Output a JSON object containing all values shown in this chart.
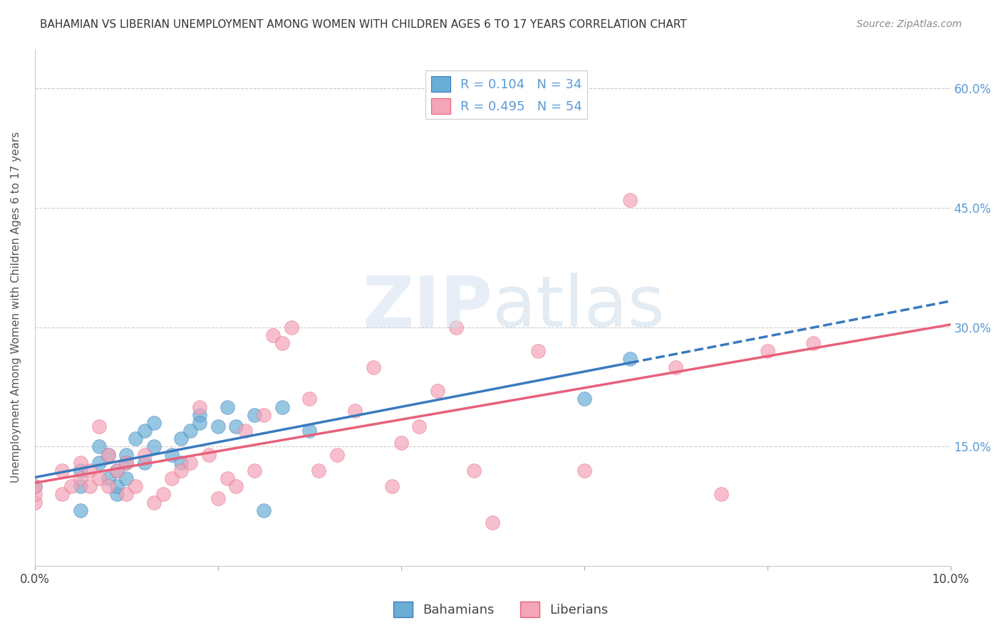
{
  "title": "BAHAMIAN VS LIBERIAN UNEMPLOYMENT AMONG WOMEN WITH CHILDREN AGES 6 TO 17 YEARS CORRELATION CHART",
  "source": "Source: ZipAtlas.com",
  "xlabel_bottom": "",
  "ylabel": "Unemployment Among Women with Children Ages 6 to 17 years",
  "xlim": [
    0.0,
    0.1
  ],
  "ylim": [
    0.0,
    0.65
  ],
  "xticks": [
    0.0,
    0.02,
    0.04,
    0.06,
    0.08,
    0.1
  ],
  "xticklabels": [
    "0.0%",
    "",
    "",
    "",
    "",
    "10.0%"
  ],
  "yticks_left": [
    0.0,
    0.15,
    0.3,
    0.45,
    0.6
  ],
  "yticklabels_left": [
    "",
    "15.0%",
    "30.0%",
    "45.0%",
    "60.0%"
  ],
  "yticks_right": [
    0.0,
    0.15,
    0.3,
    0.45,
    0.6
  ],
  "yticklabels_right": [
    "",
    "15.0%",
    "30.0%",
    "45.0%",
    "60.0%"
  ],
  "legend_r1": "R = 0.104",
  "legend_n1": "N = 34",
  "legend_r2": "R = 0.495",
  "legend_n2": "N = 54",
  "color_blue": "#6aaed6",
  "color_pink": "#f4a5b8",
  "color_blue_line": "#3a7abf",
  "color_pink_line": "#e8607a",
  "color_title": "#333333",
  "color_axis_label": "#555555",
  "color_right_tick": "#5b9bd5",
  "watermark_text": "ZIPatlas",
  "watermark_color": "#d0dff0",
  "bahamian_x": [
    0.0,
    0.005,
    0.005,
    0.005,
    0.007,
    0.007,
    0.008,
    0.008,
    0.009,
    0.009,
    0.009,
    0.01,
    0.01,
    0.01,
    0.011,
    0.012,
    0.012,
    0.013,
    0.013,
    0.015,
    0.016,
    0.016,
    0.017,
    0.018,
    0.018,
    0.02,
    0.021,
    0.022,
    0.024,
    0.025,
    0.027,
    0.03,
    0.06,
    0.065
  ],
  "bahamian_y": [
    0.1,
    0.1,
    0.12,
    0.07,
    0.13,
    0.15,
    0.11,
    0.14,
    0.09,
    0.1,
    0.12,
    0.11,
    0.13,
    0.14,
    0.16,
    0.13,
    0.17,
    0.15,
    0.18,
    0.14,
    0.13,
    0.16,
    0.17,
    0.19,
    0.18,
    0.175,
    0.2,
    0.175,
    0.19,
    0.07,
    0.2,
    0.17,
    0.21,
    0.26
  ],
  "liberian_x": [
    0.0,
    0.0,
    0.0,
    0.003,
    0.003,
    0.004,
    0.005,
    0.005,
    0.006,
    0.006,
    0.007,
    0.007,
    0.008,
    0.008,
    0.009,
    0.01,
    0.01,
    0.011,
    0.012,
    0.013,
    0.014,
    0.015,
    0.016,
    0.017,
    0.018,
    0.019,
    0.02,
    0.021,
    0.022,
    0.023,
    0.024,
    0.025,
    0.026,
    0.027,
    0.028,
    0.03,
    0.031,
    0.033,
    0.035,
    0.037,
    0.039,
    0.04,
    0.042,
    0.044,
    0.046,
    0.048,
    0.05,
    0.055,
    0.06,
    0.065,
    0.07,
    0.075,
    0.08,
    0.085
  ],
  "liberian_y": [
    0.08,
    0.09,
    0.1,
    0.09,
    0.12,
    0.1,
    0.11,
    0.13,
    0.1,
    0.12,
    0.11,
    0.175,
    0.1,
    0.14,
    0.12,
    0.09,
    0.13,
    0.1,
    0.14,
    0.08,
    0.09,
    0.11,
    0.12,
    0.13,
    0.2,
    0.14,
    0.085,
    0.11,
    0.1,
    0.17,
    0.12,
    0.19,
    0.29,
    0.28,
    0.3,
    0.21,
    0.12,
    0.14,
    0.195,
    0.25,
    0.1,
    0.155,
    0.175,
    0.22,
    0.3,
    0.12,
    0.055,
    0.27,
    0.12,
    0.46,
    0.25,
    0.09,
    0.27,
    0.28
  ]
}
